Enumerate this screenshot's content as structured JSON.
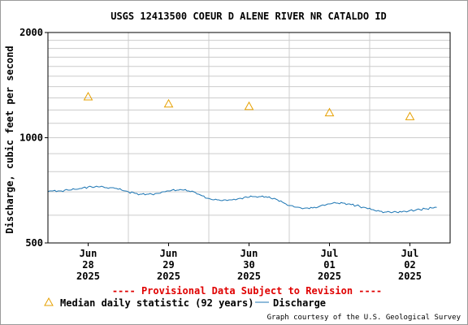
{
  "chart_data": {
    "type": "line",
    "title": "USGS 12413500 COEUR D ALENE RIVER NR CATALDO ID",
    "ylabel": "Discharge, cubic feet per second",
    "y_scale": "log",
    "ylim": [
      500,
      2000
    ],
    "y_ticks": [
      {
        "value": 500,
        "label": "500"
      },
      {
        "value": 1000,
        "label": "1000"
      },
      {
        "value": 2000,
        "label": "2000"
      }
    ],
    "xlim": [
      "2025-06-28 00:00",
      "2025-07-03 00:00"
    ],
    "x_ticks": [
      {
        "at": "2025-06-28 12:00",
        "label": [
          "Jun",
          "28",
          "2025"
        ]
      },
      {
        "at": "2025-06-29 12:00",
        "label": [
          "Jun",
          "29",
          "2025"
        ]
      },
      {
        "at": "2025-06-30 12:00",
        "label": [
          "Jun",
          "30",
          "2025"
        ]
      },
      {
        "at": "2025-07-01 12:00",
        "label": [
          "Jul",
          "01",
          "2025"
        ]
      },
      {
        "at": "2025-07-02 12:00",
        "label": [
          "Jul",
          "02",
          "2025"
        ]
      }
    ],
    "grid": true,
    "series": [
      {
        "name": "Discharge",
        "color": "#1f77b4",
        "style": "line",
        "x": [
          "2025-06-28 00:00",
          "2025-06-28 04:00",
          "2025-06-28 08:00",
          "2025-06-28 12:00",
          "2025-06-28 16:00",
          "2025-06-28 20:00",
          "2025-06-29 00:00",
          "2025-06-29 04:00",
          "2025-06-29 08:00",
          "2025-06-29 12:00",
          "2025-06-29 16:00",
          "2025-06-29 20:00",
          "2025-06-30 00:00",
          "2025-06-30 04:00",
          "2025-06-30 08:00",
          "2025-06-30 12:00",
          "2025-06-30 16:00",
          "2025-06-30 20:00",
          "2025-07-01 00:00",
          "2025-07-01 04:00",
          "2025-07-01 08:00",
          "2025-07-01 12:00",
          "2025-07-01 16:00",
          "2025-07-01 20:00",
          "2025-07-02 00:00",
          "2025-07-02 04:00",
          "2025-07-02 08:00",
          "2025-07-02 12:00",
          "2025-07-02 16:00",
          "2025-07-02 20:00"
        ],
        "values": [
          705,
          705,
          712,
          722,
          722,
          718,
          700,
          688,
          690,
          705,
          710,
          698,
          668,
          662,
          665,
          678,
          680,
          668,
          640,
          627,
          632,
          648,
          650,
          640,
          625,
          614,
          612,
          618,
          625,
          632
        ]
      },
      {
        "name": "Median daily statistic (92 years)",
        "color": "#e6a000",
        "style": "triangle",
        "x": [
          "2025-06-28 12:00",
          "2025-06-29 12:00",
          "2025-06-30 12:00",
          "2025-07-01 12:00",
          "2025-07-02 12:00"
        ],
        "values": [
          1310,
          1250,
          1230,
          1180,
          1150
        ]
      }
    ],
    "legend_position": "bottom-left",
    "annotation": "---- Provisional Data Subject to Revision ----",
    "credit": "Graph courtesy of the U.S. Geological Survey"
  }
}
